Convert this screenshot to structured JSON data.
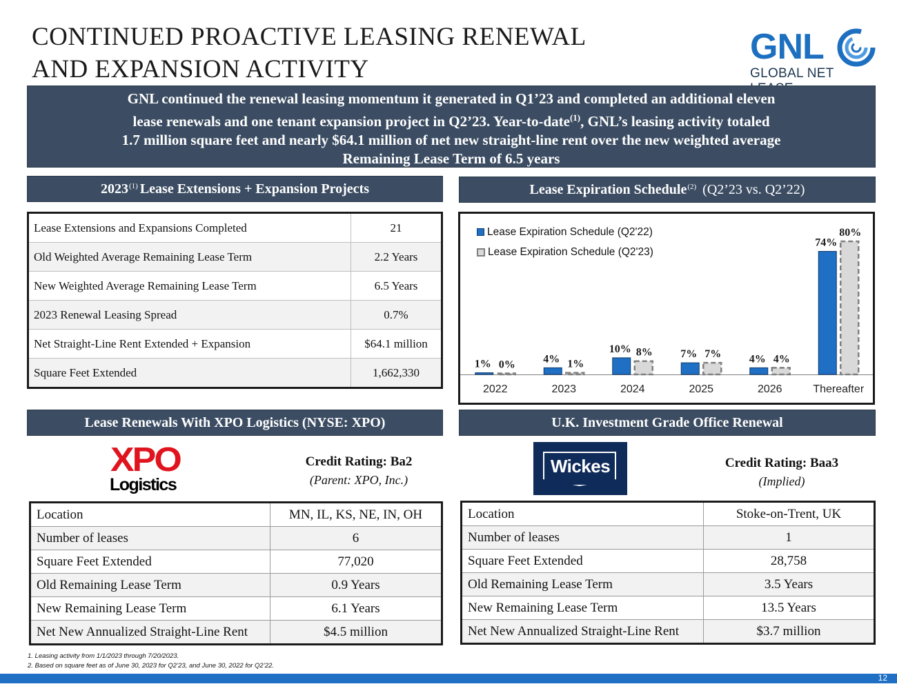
{
  "title": [
    "CONTINUED PROACTIVE LEASING RENEWAL",
    "AND EXPANSION ACTIVITY"
  ],
  "logo": {
    "main": "GNL",
    "sub": "GLOBAL NET LEASE"
  },
  "summary": [
    "GNL continued the renewal leasing momentum it generated in Q1’23 and completed an additional eleven",
    "lease renewals and one tenant expansion project in Q2’23. Year-to-date",
    "(1)",
    ", GNL’s leasing activity totaled",
    "1.7 million square feet and nearly $64.1 million of net new straight-line rent over the new weighted average",
    "Remaining Lease Term of 6.5 years"
  ],
  "headers": {
    "extensions": {
      "pre": "2023",
      "sup": "(1)",
      "post": "Lease Extensions + Expansion Projects"
    },
    "expiration": {
      "pre": "Lease Expiration Schedule",
      "sup": "(2)",
      "post": "(Q2’23 vs. Q2’22)"
    },
    "xpo": "Lease Renewals With XPO Logistics (NYSE: XPO)",
    "uk": "U.K. Investment Grade Office Renewal"
  },
  "extensions_table": [
    [
      "Lease Extensions and Expansions Completed",
      "21"
    ],
    [
      "Old Weighted Average Remaining Lease Term",
      "2.2 Years"
    ],
    [
      "New Weighted Average Remaining Lease Term",
      "6.5 Years"
    ],
    [
      "2023 Renewal Leasing Spread",
      "0.7%"
    ],
    [
      "Net Straight-Line Rent Extended + Expansion",
      "$64.1 million"
    ],
    [
      "Square Feet Extended",
      "1,662,330"
    ]
  ],
  "chart_data": {
    "type": "bar",
    "title": "",
    "categories": [
      "2022",
      "2023",
      "2024",
      "2025",
      "2026",
      "Thereafter"
    ],
    "series": [
      {
        "name": "Lease Expiration Schedule (Q2'22)",
        "values": [
          1,
          4,
          10,
          7,
          4,
          74
        ],
        "labels": [
          "1%",
          "4%",
          "10%",
          "7%",
          "4%",
          "74%"
        ],
        "color": "#1f6fc5"
      },
      {
        "name": "Lease Expiration Schedule (Q2'23)",
        "values": [
          0,
          1,
          8,
          7,
          4,
          80
        ],
        "labels": [
          "0%",
          "1%",
          "8%",
          "7%",
          "4%",
          "80%"
        ],
        "color": "#d9d9d9"
      }
    ],
    "ylim": [
      0,
      85
    ],
    "legend": "top-left",
    "grid": false
  },
  "xpo": {
    "logo_top": "XPO",
    "logo_bottom": "Logistics",
    "credit": "Credit Rating: Ba2",
    "parent": "(Parent: XPO, Inc.)",
    "rows": [
      [
        "Location",
        "MN, IL, KS, NE, IN, OH"
      ],
      [
        "Number of leases",
        "6"
      ],
      [
        "Square Feet Extended",
        "77,020"
      ],
      [
        "Old Remaining Lease Term",
        "0.9 Years"
      ],
      [
        "New Remaining Lease Term",
        "6.1 Years"
      ],
      [
        "Net New Annualized Straight-Line Rent",
        "$4.5 million"
      ]
    ]
  },
  "uk": {
    "logo": "Wickes",
    "credit": "Credit Rating: Baa3",
    "note": "(Implied)",
    "rows": [
      [
        "Location",
        "Stoke-on-Trent, UK"
      ],
      [
        "Number of leases",
        "1"
      ],
      [
        "Square Feet Extended",
        "28,758"
      ],
      [
        "Old Remaining Lease Term",
        "3.5 Years"
      ],
      [
        "New Remaining Lease Term",
        "13.5 Years"
      ],
      [
        "Net New Annualized Straight-Line Rent",
        "$3.7 million"
      ]
    ]
  },
  "footnotes": [
    "1.    Leasing activity from 1/1/2023 through 7/20/2023.",
    "2.    Based on square feet as of June 30, 2023 for Q2’23, and June 30, 2022 for Q2’22."
  ],
  "page_number": "12"
}
